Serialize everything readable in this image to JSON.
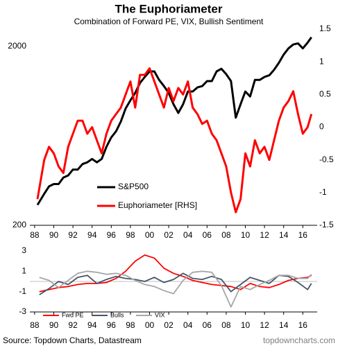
{
  "chart_data": [
    {
      "type": "line",
      "title": "The Euphoriameter",
      "subtitle": "Combination of Forward PE, VIX, Bullish Sentiment",
      "x": [
        1988.3,
        1989,
        1989.5,
        1990,
        1990.5,
        1991,
        1991.5,
        1992,
        1992.5,
        1993,
        1993.5,
        1994,
        1994.5,
        1995,
        1995.5,
        1996,
        1996.5,
        1997,
        1997.5,
        1998,
        1998.5,
        1999,
        1999.5,
        2000,
        2000.5,
        2001,
        2001.5,
        2002,
        2002.5,
        2003,
        2003.5,
        2004,
        2004.5,
        2005,
        2005.5,
        2006,
        2006.5,
        2007,
        2007.5,
        2008,
        2008.5,
        2009,
        2009.5,
        2010,
        2010.5,
        2011,
        2011.5,
        2012,
        2012.5,
        2013,
        2013.5,
        2014,
        2014.5,
        2015,
        2015.5,
        2016,
        2016.5,
        2016.9
      ],
      "series": [
        {
          "name": "S&P500",
          "color": "#000000",
          "values": [
            260,
            300,
            330,
            340,
            340,
            370,
            380,
            410,
            410,
            440,
            450,
            470,
            450,
            470,
            550,
            620,
            670,
            760,
            900,
            1000,
            1100,
            1250,
            1350,
            1450,
            1450,
            1300,
            1200,
            1100,
            950,
            850,
            950,
            1120,
            1120,
            1180,
            1200,
            1280,
            1280,
            1450,
            1500,
            1400,
            1280,
            800,
            950,
            1120,
            1050,
            1300,
            1300,
            1350,
            1380,
            1480,
            1620,
            1800,
            1950,
            2050,
            2080,
            1950,
            2100,
            2250
          ]
        },
        {
          "name": "Euphoriameter [RHS]",
          "color": "#ff0000",
          "axis": "y2",
          "values": [
            -1.1,
            -0.5,
            -0.3,
            -0.4,
            -0.6,
            -0.7,
            -0.3,
            -0.1,
            0.1,
            0.1,
            -0.1,
            0.0,
            -0.2,
            -0.4,
            -0.1,
            0.1,
            0.2,
            0.3,
            0.5,
            0.7,
            0.3,
            0.8,
            0.8,
            0.9,
            0.7,
            0.5,
            0.3,
            0.6,
            0.4,
            0.6,
            0.5,
            0.7,
            0.3,
            0.2,
            0.05,
            0.1,
            -0.1,
            -0.2,
            -0.4,
            -0.6,
            -1.0,
            -1.3,
            -1.1,
            -0.4,
            -0.6,
            -0.2,
            -0.4,
            -0.3,
            -0.5,
            -0.2,
            0.1,
            0.3,
            0.4,
            0.55,
            0.2,
            -0.1,
            0.0,
            0.2
          ]
        }
      ],
      "xlim": [
        1987.5,
        2017.5
      ],
      "xticks": [
        {
          "value": 1988,
          "label": "88"
        },
        {
          "value": 1990,
          "label": "90"
        },
        {
          "value": 1992,
          "label": "92"
        },
        {
          "value": 1994,
          "label": "94"
        },
        {
          "value": 1996,
          "label": "96"
        },
        {
          "value": 1998,
          "label": "98"
        },
        {
          "value": 2000,
          "label": "00"
        },
        {
          "value": 2002,
          "label": "02"
        },
        {
          "value": 2004,
          "label": "04"
        },
        {
          "value": 2006,
          "label": "06"
        },
        {
          "value": 2008,
          "label": "08"
        },
        {
          "value": 2010,
          "label": "10"
        },
        {
          "value": 2012,
          "label": "12"
        },
        {
          "value": 2014,
          "label": "14"
        },
        {
          "value": 2016,
          "label": "16"
        }
      ],
      "ylim": [
        200,
        2500
      ],
      "log_y": true,
      "yticks": [
        200,
        2000
      ],
      "y2lim": [
        -1.5,
        1.5
      ],
      "y2ticks": [
        -1.5,
        -1,
        -0.5,
        0,
        0.5,
        1,
        1.5
      ]
    },
    {
      "type": "line",
      "x": [
        1988.5,
        1989.5,
        1990.5,
        1991.5,
        1992.5,
        1993.5,
        1994.5,
        1995.5,
        1996.5,
        1997.5,
        1998.5,
        1999.5,
        2000.5,
        2001.5,
        2002.5,
        2003.5,
        2004.5,
        2005.5,
        2006.5,
        2007.5,
        2008.5,
        2009.5,
        2010.5,
        2011.5,
        2012.5,
        2013.5,
        2014.5,
        2015.5,
        2016.5,
        2016.9
      ],
      "series": [
        {
          "name": "Fwd PE",
          "color": "#ff0000",
          "values": [
            -1,
            -0.8,
            -0.6,
            -0.5,
            -0.3,
            -0.2,
            -0.2,
            -0.1,
            0.3,
            1.0,
            2.0,
            2.6,
            2.3,
            1.3,
            0.8,
            0.5,
            0.1,
            -0.1,
            -0.3,
            -0.4,
            -0.5,
            -0.8,
            -0.2,
            -0.5,
            -0.6,
            -0.3,
            0.1,
            0.3,
            0.4,
            0.6
          ]
        },
        {
          "name": "Bulls",
          "color": "#44546a",
          "values": [
            -1.3,
            -0.7,
            0.0,
            -0.3,
            0.4,
            0.6,
            -0.2,
            0.2,
            0.5,
            0.3,
            0.2,
            0.0,
            0.4,
            -0.1,
            0.2,
            0.8,
            0.3,
            0.2,
            0.5,
            0.2,
            -1.0,
            -0.3,
            0.4,
            0.1,
            -0.2,
            0.6,
            0.5,
            -0.1,
            -0.8,
            -0.2
          ]
        },
        {
          "name": "VIX",
          "color": "#a6a6a6",
          "values": [
            0.4,
            0.1,
            -0.6,
            0.1,
            0.8,
            1.0,
            0.9,
            0.7,
            0.8,
            0.6,
            0.1,
            -0.3,
            -0.5,
            -0.9,
            -1.2,
            0.1,
            0.9,
            1.0,
            0.9,
            -0.4,
            -2.5,
            -0.5,
            -0.8,
            -0.3,
            0.1,
            0.6,
            0.6,
            0.3,
            0.3,
            0.7
          ]
        }
      ],
      "xlim": [
        1987.5,
        2017.5
      ],
      "xticks": [
        {
          "value": 1988,
          "label": "88"
        },
        {
          "value": 1990,
          "label": "90"
        },
        {
          "value": 1992,
          "label": "92"
        },
        {
          "value": 1994,
          "label": "94"
        },
        {
          "value": 1996,
          "label": "96"
        },
        {
          "value": 1998,
          "label": "98"
        },
        {
          "value": 2000,
          "label": "00"
        },
        {
          "value": 2002,
          "label": "02"
        },
        {
          "value": 2004,
          "label": "04"
        },
        {
          "value": 2006,
          "label": "06"
        },
        {
          "value": 2008,
          "label": "08"
        },
        {
          "value": 2010,
          "label": "10"
        },
        {
          "value": 2012,
          "label": "12"
        },
        {
          "value": 2014,
          "label": "14"
        },
        {
          "value": 2016,
          "label": "16"
        }
      ],
      "ylim": [
        -3,
        3
      ],
      "yticks": [
        -3,
        -1,
        1,
        3
      ]
    }
  ],
  "footer": {
    "source": "Source: Topdown Charts, Datastream",
    "brand": "topdowncharts.com"
  }
}
